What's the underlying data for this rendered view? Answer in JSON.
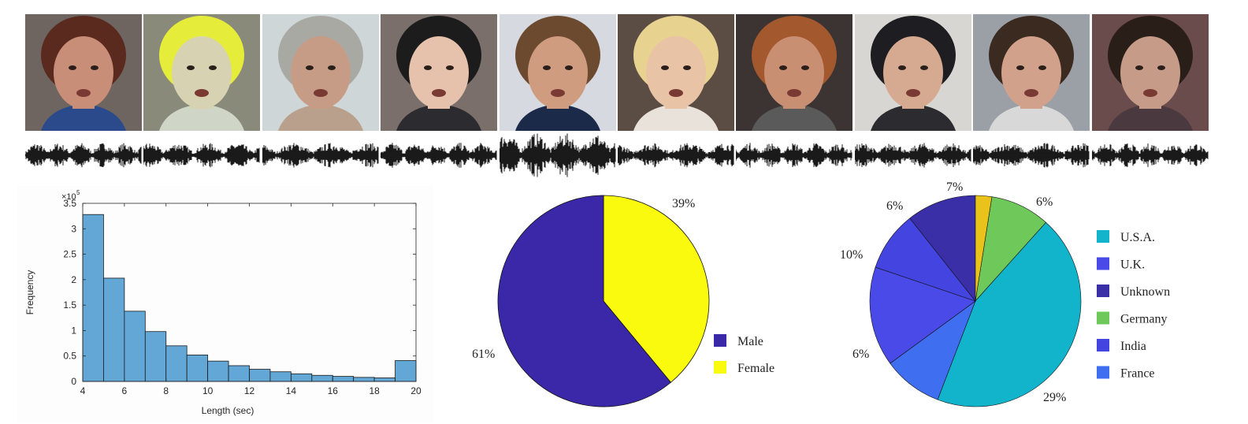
{
  "faces": {
    "count": 10,
    "skin": [
      "#c98e78",
      "#d7d3b2",
      "#c79c86",
      "#e6c1ac",
      "#cf9c80",
      "#e9c3a6",
      "#c98f72",
      "#d6aa90",
      "#d2a18c",
      "#c69c88"
    ],
    "hair": [
      "#5a2a1e",
      "#e6ec3a",
      "#a9a9a4",
      "#1c1c1c",
      "#6b4a30",
      "#e8d28f",
      "#a4582e",
      "#1d1d22",
      "#3a2a20",
      "#2a1e18"
    ],
    "bg": [
      "#6e6460",
      "#8a8a7a",
      "#cfd6d8",
      "#7b6f6c",
      "#d7d9e0",
      "#5b4c44",
      "#3c3432",
      "#d8d6d2",
      "#9aa0a6",
      "#6a4c4c"
    ],
    "shirt": [
      "#2a4a8c",
      "#cfd6c8",
      "#b9a08c",
      "#2c2c30",
      "#1c2a4a",
      "#e8e2da",
      "#5a5a5a",
      "#2c2c30",
      "#d8d8d8",
      "#4a3a40"
    ]
  },
  "chart_data": [
    {
      "type": "bar",
      "title": "",
      "xlabel": "Length (sec)",
      "ylabel": "Frequency",
      "y_exponent_label": "×10",
      "y_exponent_value": "5",
      "x_bin_edges": [
        4,
        5,
        6,
        7,
        8,
        9,
        10,
        11,
        12,
        13,
        14,
        15,
        16,
        17,
        18,
        19,
        20
      ],
      "values": [
        3.28,
        2.03,
        1.38,
        0.98,
        0.7,
        0.52,
        0.4,
        0.31,
        0.24,
        0.19,
        0.15,
        0.12,
        0.1,
        0.08,
        0.07,
        0.41
      ],
      "xlim": [
        4,
        20
      ],
      "ylim": [
        0,
        3.5
      ],
      "xticks": [
        "4",
        "6",
        "8",
        "10",
        "12",
        "14",
        "16",
        "18",
        "20"
      ],
      "yticks": [
        "0",
        "0.5",
        "1",
        "1.5",
        "2",
        "2.5",
        "3",
        "3.5"
      ],
      "bar_color": "#62a7d6",
      "grid": false
    },
    {
      "type": "pie",
      "title": "",
      "slices": [
        {
          "name": "Male",
          "value": 61,
          "label": "61%",
          "color": "#3b28a8"
        },
        {
          "name": "Female",
          "value": 39,
          "label": "39%",
          "color": "#fafa0f"
        }
      ],
      "legend": [
        "Male",
        "Female"
      ],
      "legend_position": "right"
    },
    {
      "type": "pie",
      "title": "",
      "slices": [
        {
          "name": "U.S.A.",
          "value": 29,
          "label": "29%",
          "color": "#12b4cc"
        },
        {
          "name": "U.K.",
          "value": 10,
          "label": "10%",
          "color": "#4a4ae8"
        },
        {
          "name": "Unknown",
          "value": 7,
          "label": "7%",
          "color": "#3b2fa8"
        },
        {
          "name": "Germany",
          "value": 6,
          "label": "6%",
          "color": "#6ec85a"
        },
        {
          "name": "India",
          "value": 6,
          "label": "6%",
          "color": "#4444e0"
        },
        {
          "name": "France",
          "value": 6,
          "label": "6%",
          "color": "#3f6ff0"
        }
      ],
      "legend": [
        "U.S.A.",
        "U.K.",
        "Unknown",
        "Germany",
        "India",
        "France"
      ],
      "legend_position": "right"
    }
  ]
}
